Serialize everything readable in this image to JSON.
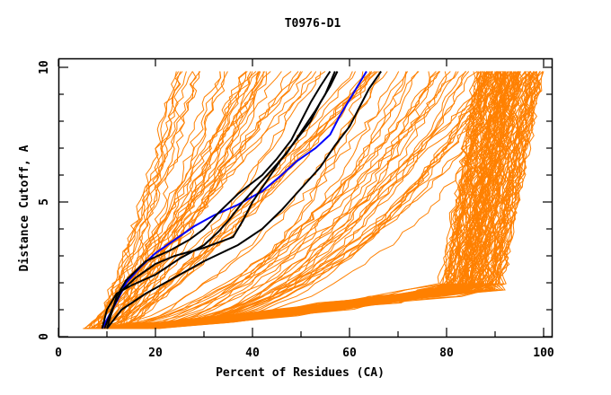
{
  "chart_data": {
    "type": "line",
    "title": "T0976-D1",
    "xlabel": "Percent of Residues (CA)",
    "ylabel": "Distance Cutoff, A",
    "xlim": [
      0,
      100
    ],
    "ylim": [
      0,
      10
    ],
    "x_ticks": [
      0,
      20,
      40,
      60,
      80,
      100
    ],
    "x_minor_ticks": [
      10,
      30,
      50,
      70,
      90
    ],
    "y_ticks": [
      0,
      5,
      10
    ],
    "y_minor_ticks": [
      1,
      2,
      3,
      4,
      6,
      7,
      8,
      9
    ],
    "grid": false,
    "legend": "none",
    "colors": {
      "other_models": "#ff8000",
      "highlight_model": "#0000ff",
      "reference_models": "#000000",
      "axis": "#000000"
    },
    "y_range_of_curves": [
      0.3,
      9.85
    ],
    "highlight_series": [
      {
        "name": "blue-model",
        "color": "#0000ff",
        "points": [
          [
            9,
            0.3
          ],
          [
            10.5,
            0.8
          ],
          [
            12,
            1.3
          ],
          [
            14,
            2.0
          ],
          [
            17,
            2.6
          ],
          [
            20,
            3.1
          ],
          [
            24,
            3.6
          ],
          [
            28,
            4.1
          ],
          [
            32,
            4.5
          ],
          [
            37,
            4.9
          ],
          [
            42,
            5.4
          ],
          [
            46,
            6.0
          ],
          [
            49,
            6.5
          ],
          [
            53,
            7.0
          ],
          [
            56,
            7.5
          ],
          [
            58,
            8.2
          ],
          [
            60,
            8.8
          ],
          [
            62,
            9.4
          ],
          [
            63.5,
            9.85
          ]
        ]
      },
      {
        "name": "black-model-1",
        "color": "#000000",
        "points": [
          [
            10,
            0.3
          ],
          [
            11,
            0.9
          ],
          [
            12,
            1.5
          ],
          [
            14,
            2.1
          ],
          [
            18,
            2.8
          ],
          [
            23,
            3.2
          ],
          [
            27,
            3.6
          ],
          [
            30,
            4.0
          ],
          [
            33,
            4.6
          ],
          [
            37,
            5.3
          ],
          [
            42,
            6.0
          ],
          [
            45,
            6.6
          ],
          [
            48,
            7.3
          ],
          [
            50,
            8.0
          ],
          [
            52,
            8.7
          ],
          [
            54,
            9.3
          ],
          [
            56,
            9.85
          ]
        ]
      },
      {
        "name": "black-model-2",
        "color": "#000000",
        "points": [
          [
            9.5,
            0.3
          ],
          [
            11,
            1.0
          ],
          [
            13,
            1.7
          ],
          [
            16,
            2.2
          ],
          [
            20,
            2.7
          ],
          [
            24,
            3.0
          ],
          [
            30,
            3.3
          ],
          [
            36,
            3.7
          ],
          [
            38,
            4.3
          ],
          [
            40,
            5.0
          ],
          [
            43,
            5.8
          ],
          [
            46,
            6.6
          ],
          [
            49,
            7.3
          ],
          [
            52,
            8.0
          ],
          [
            54,
            8.7
          ],
          [
            56,
            9.3
          ],
          [
            57.5,
            9.85
          ]
        ]
      },
      {
        "name": "black-model-3",
        "color": "#000000",
        "points": [
          [
            9,
            0.3
          ],
          [
            10,
            1.0
          ],
          [
            12,
            1.6
          ],
          [
            15,
            1.9
          ],
          [
            20,
            2.3
          ],
          [
            25,
            2.9
          ],
          [
            30,
            3.4
          ],
          [
            33,
            3.9
          ],
          [
            35,
            4.3
          ],
          [
            38,
            5.0
          ],
          [
            43,
            6.0
          ],
          [
            47,
            6.8
          ],
          [
            50,
            7.6
          ],
          [
            53,
            8.4
          ],
          [
            55,
            9.0
          ],
          [
            57,
            9.85
          ]
        ]
      },
      {
        "name": "black-model-4",
        "color": "#000000",
        "points": [
          [
            10,
            0.3
          ],
          [
            13,
            1.0
          ],
          [
            18,
            1.6
          ],
          [
            24,
            2.2
          ],
          [
            30,
            2.8
          ],
          [
            37,
            3.4
          ],
          [
            42,
            4.0
          ],
          [
            46,
            4.7
          ],
          [
            50,
            5.5
          ],
          [
            54,
            6.3
          ],
          [
            57,
            7.1
          ],
          [
            60,
            7.8
          ],
          [
            62,
            8.5
          ],
          [
            64,
            9.2
          ],
          [
            66.5,
            9.85
          ]
        ]
      }
    ],
    "other_models_families": [
      {
        "name": "steep-fan",
        "count": 45,
        "x_start_range": [
          5,
          14
        ],
        "x_end_range": [
          24,
          66
        ],
        "shape": "steep"
      },
      {
        "name": "mid-fan",
        "count": 35,
        "x_start_range": [
          8,
          16
        ],
        "x_end_range": [
          60,
          98
        ],
        "shape": "mid"
      },
      {
        "name": "shallow-dense",
        "count": 110,
        "x_start_range": [
          5,
          20
        ],
        "x_end_range": [
          86,
          100
        ],
        "shape": "shallow"
      }
    ]
  }
}
